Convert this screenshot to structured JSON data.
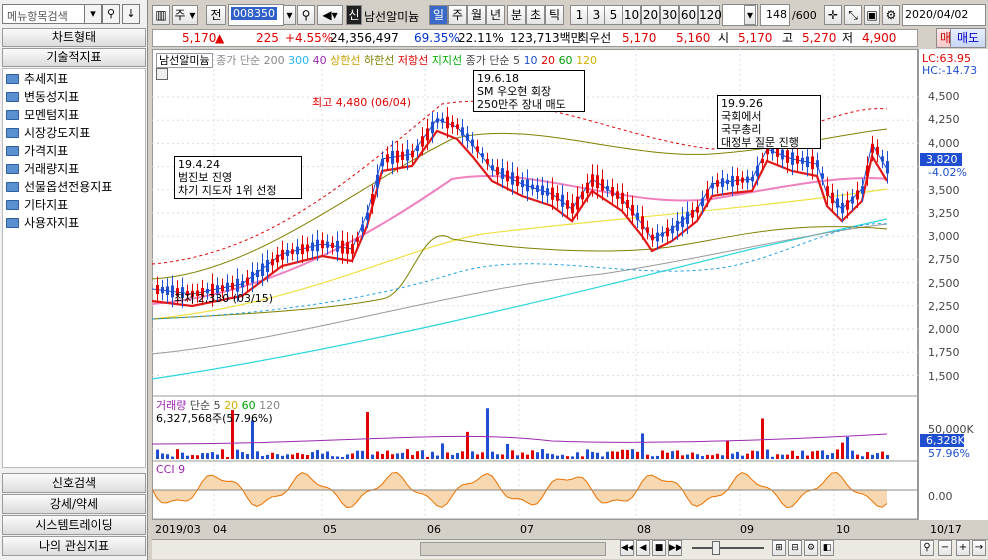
{
  "left": {
    "search_placeholder": "메뉴항목검색",
    "header1": "차트형태",
    "header2": "기술적지표",
    "tree": [
      "추세지표",
      "변동성지표",
      "모멘텀지표",
      "시장강도지표",
      "가격지표",
      "거래량지표",
      "선물옵션전용지표",
      "기타지표",
      "사용자지표"
    ],
    "footer": [
      "신호검색",
      "강세/약세",
      "시스템트레이딩",
      "나의 관심지표"
    ]
  },
  "toolbar": {
    "type": "주",
    "prev": "전",
    "code": "008350",
    "sin": "신",
    "name": "남선알미늄",
    "periods": [
      "일",
      "주",
      "월",
      "년",
      "분",
      "초",
      "틱"
    ],
    "active_period": "일",
    "nums": [
      "1",
      "3",
      "5",
      "10",
      "20",
      "30",
      "60",
      "120"
    ],
    "count": "148",
    "total": "/600",
    "date": "2020/04/02"
  },
  "info": {
    "price": "5,170",
    "change": "225",
    "pct": "+4.55%",
    "volume": "24,356,497",
    "ratio": "69.35%",
    "rate2": "22.11%",
    "amount": "123,713백만",
    "best_label": "최우선",
    "best1": "5,170",
    "best2": "5,160",
    "open_label": "시",
    "open": "5,170",
    "high_label": "고",
    "high": "5,270",
    "low_label": "저",
    "low": "4,900",
    "buy": "매수",
    "sell": "매도"
  },
  "legend": {
    "name": "남선알미늄",
    "ma": "종가 단순 200",
    "l1": "300",
    "l2": "40",
    "upper": "상한선",
    "lower": "하한선",
    "resist": "저항선",
    "support": "지지선",
    "ma2": "종가 단순 5",
    "v10": "10",
    "v20": "20",
    "v60": "60",
    "v120": "120",
    "lc": "LC:63.95",
    "hc": "HC:-14.73"
  },
  "annotations": {
    "a1": "19.6.18",
    "a2": "SM 우오현 회장",
    "a3": "250만주 장내 매도",
    "high": "최고 4,480 (06/04)",
    "b1": "19.9.26",
    "b2": "국회에서",
    "b3": "국무총리",
    "b4": "대정부 질문 진행",
    "c1": "19.4.24",
    "c2": "범진보 진영",
    "c3": "차기 지도자 1위 선정",
    "low": "최저 2,330 (03/15)"
  },
  "yaxis": [
    "4,500",
    "4,250",
    "4,000",
    "3,750",
    "3,500",
    "3,250",
    "3,000",
    "2,750",
    "2,500",
    "2,250",
    "2,000",
    "1,750",
    "1,500"
  ],
  "price_tag": "3,820",
  "price_pct": "-4.02%",
  "volume_panel": {
    "title": "거래량",
    "ma": "단순 5",
    "v20": "20",
    "v60": "60",
    "v120": "120",
    "info": "6,327,568주(57.96%)",
    "y1": "50,000K",
    "tag": "6,328K",
    "pct": "57.96%"
  },
  "cci": {
    "title": "CCI 9",
    "zero": "0.00"
  },
  "xaxis": [
    "2019/03",
    "04",
    "05",
    "06",
    "07",
    "08",
    "09",
    "10",
    "10/17"
  ],
  "colors": {
    "up": "#e00000",
    "down": "#1f4fd0",
    "ma20": "#e01818",
    "pink": "#f080c0",
    "accent": "#3b69c8"
  }
}
